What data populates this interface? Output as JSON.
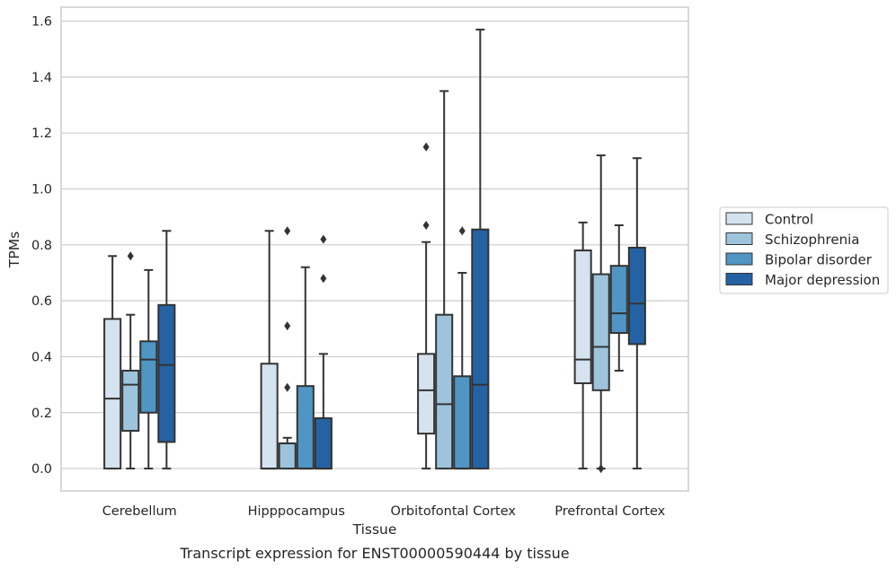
{
  "caption": "Transcript expression for ENST00000590444 by tissue",
  "chart_data": {
    "type": "box",
    "xlabel": "Tissue",
    "ylabel": "TPMs",
    "ylim": [
      -0.08,
      1.65
    ],
    "yticks": [
      0.0,
      0.2,
      0.4,
      0.6,
      0.8,
      1.0,
      1.2,
      1.4,
      1.6
    ],
    "ytick_labels": [
      "0.0",
      "0.2",
      "0.4",
      "0.6",
      "0.8",
      "1.0",
      "1.2",
      "1.4",
      "1.6"
    ],
    "grid": "horizontal",
    "legend_position": "right",
    "categories": [
      "Cerebellum",
      "Hipppocampus",
      "Orbitofontal Cortex",
      "Prefrontal Cortex"
    ],
    "series": [
      {
        "name": "Control",
        "color": "#d5e3f0",
        "boxes": [
          {
            "whislo": 0.0,
            "q1": 0.0,
            "med": 0.25,
            "q3": 0.535,
            "whishi": 0.76,
            "fliers": []
          },
          {
            "whislo": 0.0,
            "q1": 0.0,
            "med": 0.0,
            "q3": 0.375,
            "whishi": 0.85,
            "fliers": []
          },
          {
            "whislo": 0.0,
            "q1": 0.125,
            "med": 0.28,
            "q3": 0.41,
            "whishi": 0.81,
            "fliers": [
              0.87,
              1.15
            ]
          },
          {
            "whislo": 0.0,
            "q1": 0.305,
            "med": 0.39,
            "q3": 0.78,
            "whishi": 0.88,
            "fliers": []
          }
        ]
      },
      {
        "name": "Schizophrenia",
        "color": "#9dc4dc",
        "boxes": [
          {
            "whislo": 0.0,
            "q1": 0.135,
            "med": 0.3,
            "q3": 0.35,
            "whishi": 0.55,
            "fliers": [
              0.76
            ]
          },
          {
            "whislo": 0.0,
            "q1": 0.0,
            "med": 0.09,
            "q3": 0.09,
            "whishi": 0.11,
            "fliers": [
              0.29,
              0.51,
              0.85
            ]
          },
          {
            "whislo": 0.0,
            "q1": 0.0,
            "med": 0.23,
            "q3": 0.55,
            "whishi": 1.35,
            "fliers": []
          },
          {
            "whislo": 0.0,
            "q1": 0.28,
            "med": 0.435,
            "q3": 0.695,
            "whishi": 1.12,
            "fliers": [
              0.0
            ]
          }
        ]
      },
      {
        "name": "Bipolar disorder",
        "color": "#5096c5",
        "boxes": [
          {
            "whislo": 0.0,
            "q1": 0.2,
            "med": 0.39,
            "q3": 0.455,
            "whishi": 0.71,
            "fliers": []
          },
          {
            "whislo": 0.0,
            "q1": 0.0,
            "med": 0.0,
            "q3": 0.295,
            "whishi": 0.72,
            "fliers": []
          },
          {
            "whislo": 0.0,
            "q1": 0.0,
            "med": 0.0,
            "q3": 0.33,
            "whishi": 0.7,
            "fliers": [
              0.85
            ]
          },
          {
            "whislo": 0.35,
            "q1": 0.485,
            "med": 0.555,
            "q3": 0.725,
            "whishi": 0.87,
            "fliers": []
          }
        ]
      },
      {
        "name": "Major depression",
        "color": "#2462a4",
        "boxes": [
          {
            "whislo": 0.0,
            "q1": 0.095,
            "med": 0.37,
            "q3": 0.585,
            "whishi": 0.85,
            "fliers": []
          },
          {
            "whislo": 0.0,
            "q1": 0.0,
            "med": 0.0,
            "q3": 0.18,
            "whishi": 0.41,
            "fliers": [
              0.68,
              0.82
            ]
          },
          {
            "whislo": 0.0,
            "q1": 0.0,
            "med": 0.3,
            "q3": 0.855,
            "whishi": 1.57,
            "fliers": []
          },
          {
            "whislo": 0.0,
            "q1": 0.445,
            "med": 0.59,
            "q3": 0.79,
            "whishi": 1.11,
            "fliers": []
          }
        ]
      }
    ]
  }
}
